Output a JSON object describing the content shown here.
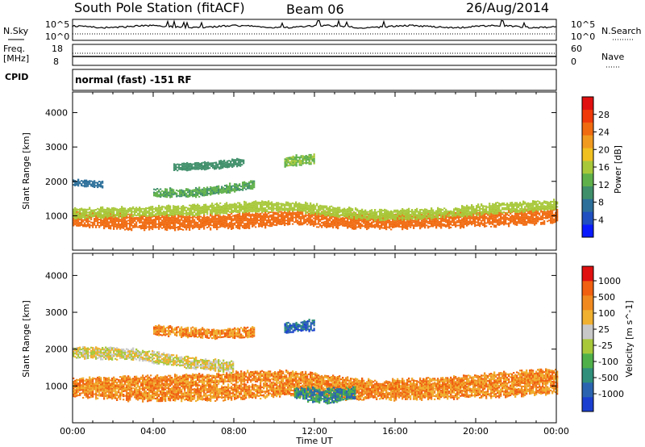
{
  "header": {
    "station": "South Pole Station (fitACF)",
    "beam": "Beam 06",
    "date": "26/Aug/2014"
  },
  "left_labels": {
    "nsky": "N.Sky",
    "freq": "Freq.",
    "freq_unit": "[MHz]",
    "cpid": "CPID"
  },
  "right_labels": {
    "nsearch": "N.Search",
    "nave": "Nave"
  },
  "strip_ticks": {
    "noise_top": "10^5",
    "noise_bottom": "10^0",
    "freq_top": "18",
    "freq_bottom": "8",
    "nave_top": "60",
    "nave_bottom": "0"
  },
  "cpid_text": "normal (fast) -151 RF",
  "chart_data": [
    {
      "type": "heatmap",
      "ylabel": "Slant Range [km]",
      "ylim": [
        0,
        4600
      ],
      "yticks": [
        1000,
        2000,
        3000,
        4000
      ],
      "xlabel": "Time UT",
      "xlim": [
        0,
        24
      ],
      "xticks": [
        "00:00",
        "04:00",
        "08:00",
        "12:00",
        "16:00",
        "20:00",
        "00:00"
      ],
      "colorbar": {
        "label": "Power [dB]",
        "range": [
          0,
          32
        ],
        "ticks": [
          "4",
          "8",
          "12",
          "16",
          "20",
          "24",
          "28"
        ],
        "colors": [
          "#0a1aff",
          "#1f4fc0",
          "#2c6f9a",
          "#3f8f6a",
          "#5fb04a",
          "#a8c83a",
          "#f0c020",
          "#f09a20",
          "#f06a10",
          "#f03a0a",
          "#e01010"
        ]
      },
      "bands": [
        {
          "from": 0,
          "to": 24,
          "center": [
            [
              0,
              900
            ],
            [
              3,
              800
            ],
            [
              6,
              800
            ],
            [
              9,
              850
            ],
            [
              11,
              950
            ],
            [
              13,
              850
            ],
            [
              15,
              820
            ],
            [
              18,
              850
            ],
            [
              21,
              900
            ],
            [
              24,
              1000
            ]
          ],
          "half_width": 180,
          "level": 26
        },
        {
          "from": 0,
          "to": 24,
          "center": [
            [
              0,
              1050
            ],
            [
              3,
              1100
            ],
            [
              6,
              1150
            ],
            [
              9,
              1250
            ],
            [
              11,
              1250
            ],
            [
              13,
              1100
            ],
            [
              15,
              1000
            ],
            [
              18,
              1050
            ],
            [
              21,
              1200
            ],
            [
              24,
              1300
            ]
          ],
          "half_width": 120,
          "level": 16
        },
        {
          "from": 4,
          "to": 9,
          "center": [
            [
              4,
              1650
            ],
            [
              6,
              1650
            ],
            [
              8,
              1800
            ],
            [
              9,
              1900
            ]
          ],
          "half_width": 100,
          "level": 12
        },
        {
          "from": 5,
          "to": 8.5,
          "center": [
            [
              5,
              2400
            ],
            [
              7,
              2450
            ],
            [
              8.5,
              2550
            ]
          ],
          "half_width": 90,
          "level": 10
        },
        {
          "from": 0,
          "to": 1.5,
          "center": [
            [
              0,
              1950
            ],
            [
              1.5,
              1900
            ]
          ],
          "half_width": 80,
          "level": 6
        },
        {
          "from": 10.5,
          "to": 12,
          "center": [
            [
              10.5,
              2550
            ],
            [
              12,
              2650
            ]
          ],
          "half_width": 120,
          "level": 14
        }
      ]
    },
    {
      "type": "heatmap",
      "ylabel": "Slant Range [km]",
      "ylim": [
        0,
        4600
      ],
      "yticks": [
        1000,
        2000,
        3000,
        4000
      ],
      "xlabel": "Time UT",
      "xlim": [
        0,
        24
      ],
      "xticks": [
        "00:00",
        "04:00",
        "08:00",
        "12:00",
        "16:00",
        "20:00",
        "00:00"
      ],
      "colorbar": {
        "label": "Velocity [m s^-1]",
        "ticks": [
          "1000",
          "500",
          "100",
          "25",
          "-25",
          "-100",
          "-500",
          "-1000"
        ],
        "colors": [
          "#1a3fd0",
          "#2a64b0",
          "#2f8f7a",
          "#4fb04a",
          "#a8c83a",
          "#c8c8c8",
          "#f0b030",
          "#f08a20",
          "#f06010",
          "#e01010"
        ]
      },
      "bands": [
        {
          "from": 0,
          "to": 24,
          "center": [
            [
              0,
              900
            ],
            [
              3,
              800
            ],
            [
              6,
              800
            ],
            [
              9,
              850
            ],
            [
              11,
              950
            ],
            [
              13,
              850
            ],
            [
              15,
              820
            ],
            [
              18,
              850
            ],
            [
              21,
              900
            ],
            [
              24,
              1000
            ]
          ],
          "half_width": 180,
          "level": 7
        },
        {
          "from": 0,
          "to": 24,
          "center": [
            [
              0,
              1050
            ],
            [
              3,
              1100
            ],
            [
              6,
              1150
            ],
            [
              9,
              1250
            ],
            [
              11,
              1250
            ],
            [
              13,
              1100
            ],
            [
              15,
              1000
            ],
            [
              18,
              1050
            ],
            [
              21,
              1200
            ],
            [
              24,
              1300
            ]
          ],
          "half_width": 120,
          "level": 7
        },
        {
          "from": 0,
          "to": 8,
          "center": [
            [
              0,
              1900
            ],
            [
              3,
              1850
            ],
            [
              6,
              1600
            ],
            [
              8,
              1500
            ]
          ],
          "half_width": 130,
          "level": 5
        },
        {
          "from": 4,
          "to": 9,
          "center": [
            [
              4,
              2500
            ],
            [
              7,
              2400
            ],
            [
              9,
              2450
            ]
          ],
          "half_width": 110,
          "level": 7
        },
        {
          "from": 10.5,
          "to": 12,
          "center": [
            [
              10.5,
              2550
            ],
            [
              12,
              2650
            ]
          ],
          "half_width": 120,
          "level": 1
        },
        {
          "from": 11,
          "to": 14,
          "center": [
            [
              11,
              800
            ],
            [
              12.5,
              700
            ],
            [
              14,
              800
            ]
          ],
          "half_width": 150,
          "level": 2
        }
      ]
    }
  ]
}
